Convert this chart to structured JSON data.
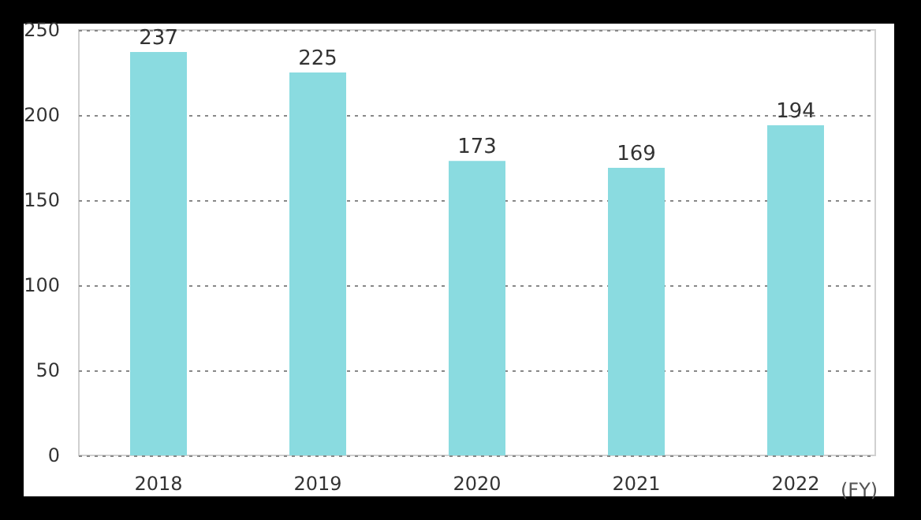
{
  "chart_data": {
    "type": "bar",
    "xlabel": "(FY)",
    "categories": [
      "2018",
      "2019",
      "2020",
      "2021",
      "2022"
    ],
    "values": [
      237,
      225,
      173,
      169,
      194
    ],
    "color": "#8adbe0",
    "ylim": [
      0,
      250
    ],
    "yticks": [
      0,
      50,
      100,
      150,
      200,
      250
    ],
    "grid": "y",
    "data_labels": true
  }
}
